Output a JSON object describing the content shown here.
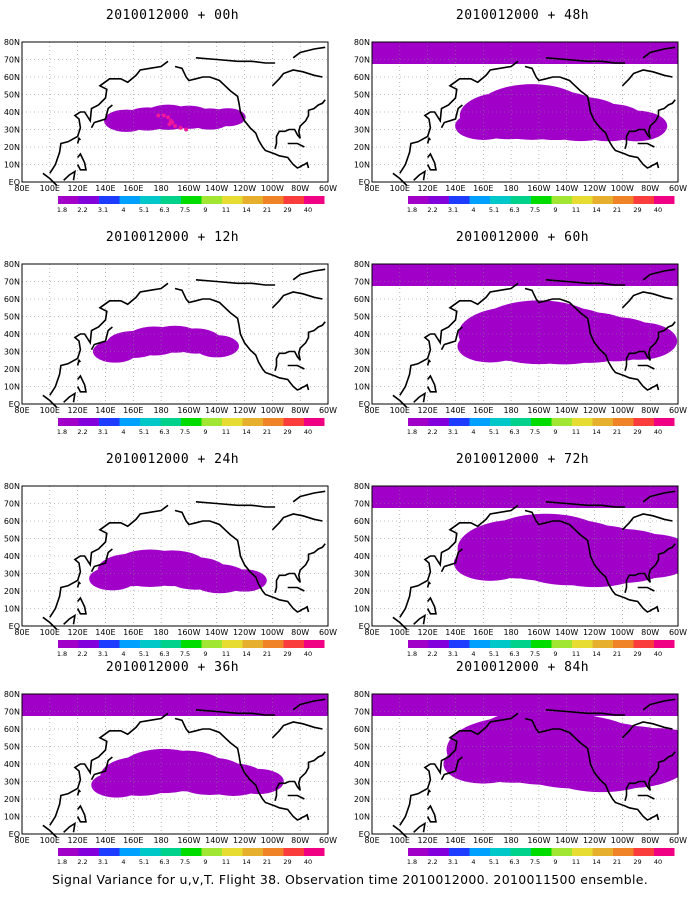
{
  "chart_data": {
    "type": "heatmap",
    "caption": "Signal Variance for u,v,T. Flight 38. Observation time 2010012000. 2010011500 ensemble.",
    "colorbar": {
      "levels": [
        "1.8",
        "2.2",
        "3.1",
        "4",
        "5.1",
        "6.3",
        "7.5",
        "9",
        "11",
        "14",
        "21",
        "29",
        "40"
      ],
      "colors": [
        "#a000c8",
        "#8200dc",
        "#1e3cff",
        "#00a0ff",
        "#00c8c8",
        "#00d28c",
        "#00dc00",
        "#a0e632",
        "#e6dc32",
        "#e6af2d",
        "#f08228",
        "#fa3c3c",
        "#f00082"
      ]
    },
    "x_ticks": [
      "80E",
      "100E",
      "120E",
      "140E",
      "160E",
      "180",
      "160W",
      "140W",
      "120W",
      "100W",
      "80W",
      "60W"
    ],
    "y_ticks": [
      "EQ",
      "10N",
      "20N",
      "30N",
      "40N",
      "50N",
      "60N",
      "70N",
      "80N"
    ],
    "panels": [
      {
        "title": "2010012000 + 00h",
        "plume": [
          [
            155,
            35,
            0.9
          ],
          [
            170,
            36,
            1.0
          ],
          [
            185,
            37,
            1.2
          ],
          [
            200,
            37,
            1.0
          ],
          [
            215,
            36,
            0.8
          ],
          [
            228,
            37,
            0.5
          ]
        ]
      },
      {
        "title": "2010012000 + 12h",
        "plume": [
          [
            147,
            30,
            0.9
          ],
          [
            160,
            34,
            1.4
          ],
          [
            175,
            36,
            1.6
          ],
          [
            190,
            37,
            1.4
          ],
          [
            205,
            36,
            1.2
          ],
          [
            220,
            33,
            0.9
          ]
        ]
      },
      {
        "title": "2010012000 + 24h",
        "plume": [
          [
            145,
            27,
            1.0
          ],
          [
            158,
            32,
            2.0
          ],
          [
            172,
            33,
            2.6
          ],
          [
            188,
            33,
            2.4
          ],
          [
            205,
            30,
            2.0
          ],
          [
            222,
            27,
            1.6
          ],
          [
            240,
            26,
            0.9
          ]
        ]
      },
      {
        "title": "2010012000 + 36h",
        "plume": [
          [
            148,
            28,
            1.2
          ],
          [
            165,
            33,
            2.8
          ],
          [
            182,
            36,
            3.4
          ],
          [
            198,
            36,
            3.0
          ],
          [
            215,
            33,
            2.6
          ],
          [
            232,
            31,
            2.0
          ],
          [
            250,
            30,
            1.2
          ]
        ]
      },
      {
        "title": "2010012000 + 48h",
        "plume": [
          [
            160,
            32,
            1.5
          ],
          [
            178,
            38,
            3.8
          ],
          [
            195,
            40,
            4.8
          ],
          [
            212,
            38,
            4.0
          ],
          [
            230,
            36,
            3.4
          ],
          [
            250,
            34,
            2.6
          ],
          [
            270,
            32,
            1.8
          ]
        ]
      },
      {
        "title": "2010012000 + 60h",
        "plume": [
          [
            165,
            33,
            2.0
          ],
          [
            182,
            40,
            4.6
          ],
          [
            200,
            41,
            5.8
          ],
          [
            218,
            39,
            5.0
          ],
          [
            236,
            38,
            4.2
          ],
          [
            255,
            37,
            3.4
          ],
          [
            272,
            36,
            2.6
          ]
        ]
      },
      {
        "title": "2010012000 + 72h",
        "plume": [
          [
            165,
            36,
            2.4
          ],
          [
            185,
            44,
            5.2
          ],
          [
            205,
            45,
            6.2
          ],
          [
            222,
            42,
            6.0
          ],
          [
            240,
            40,
            5.6
          ],
          [
            260,
            40,
            4.6
          ],
          [
            280,
            40,
            3.4
          ]
        ]
      },
      {
        "title": "2010012000 + 84h",
        "plume": [
          [
            160,
            40,
            2.8
          ],
          [
            182,
            48,
            6.0
          ],
          [
            205,
            50,
            7.4
          ],
          [
            225,
            47,
            7.0
          ],
          [
            245,
            44,
            6.6
          ],
          [
            265,
            44,
            5.6
          ],
          [
            285,
            46,
            4.2
          ]
        ]
      }
    ]
  }
}
